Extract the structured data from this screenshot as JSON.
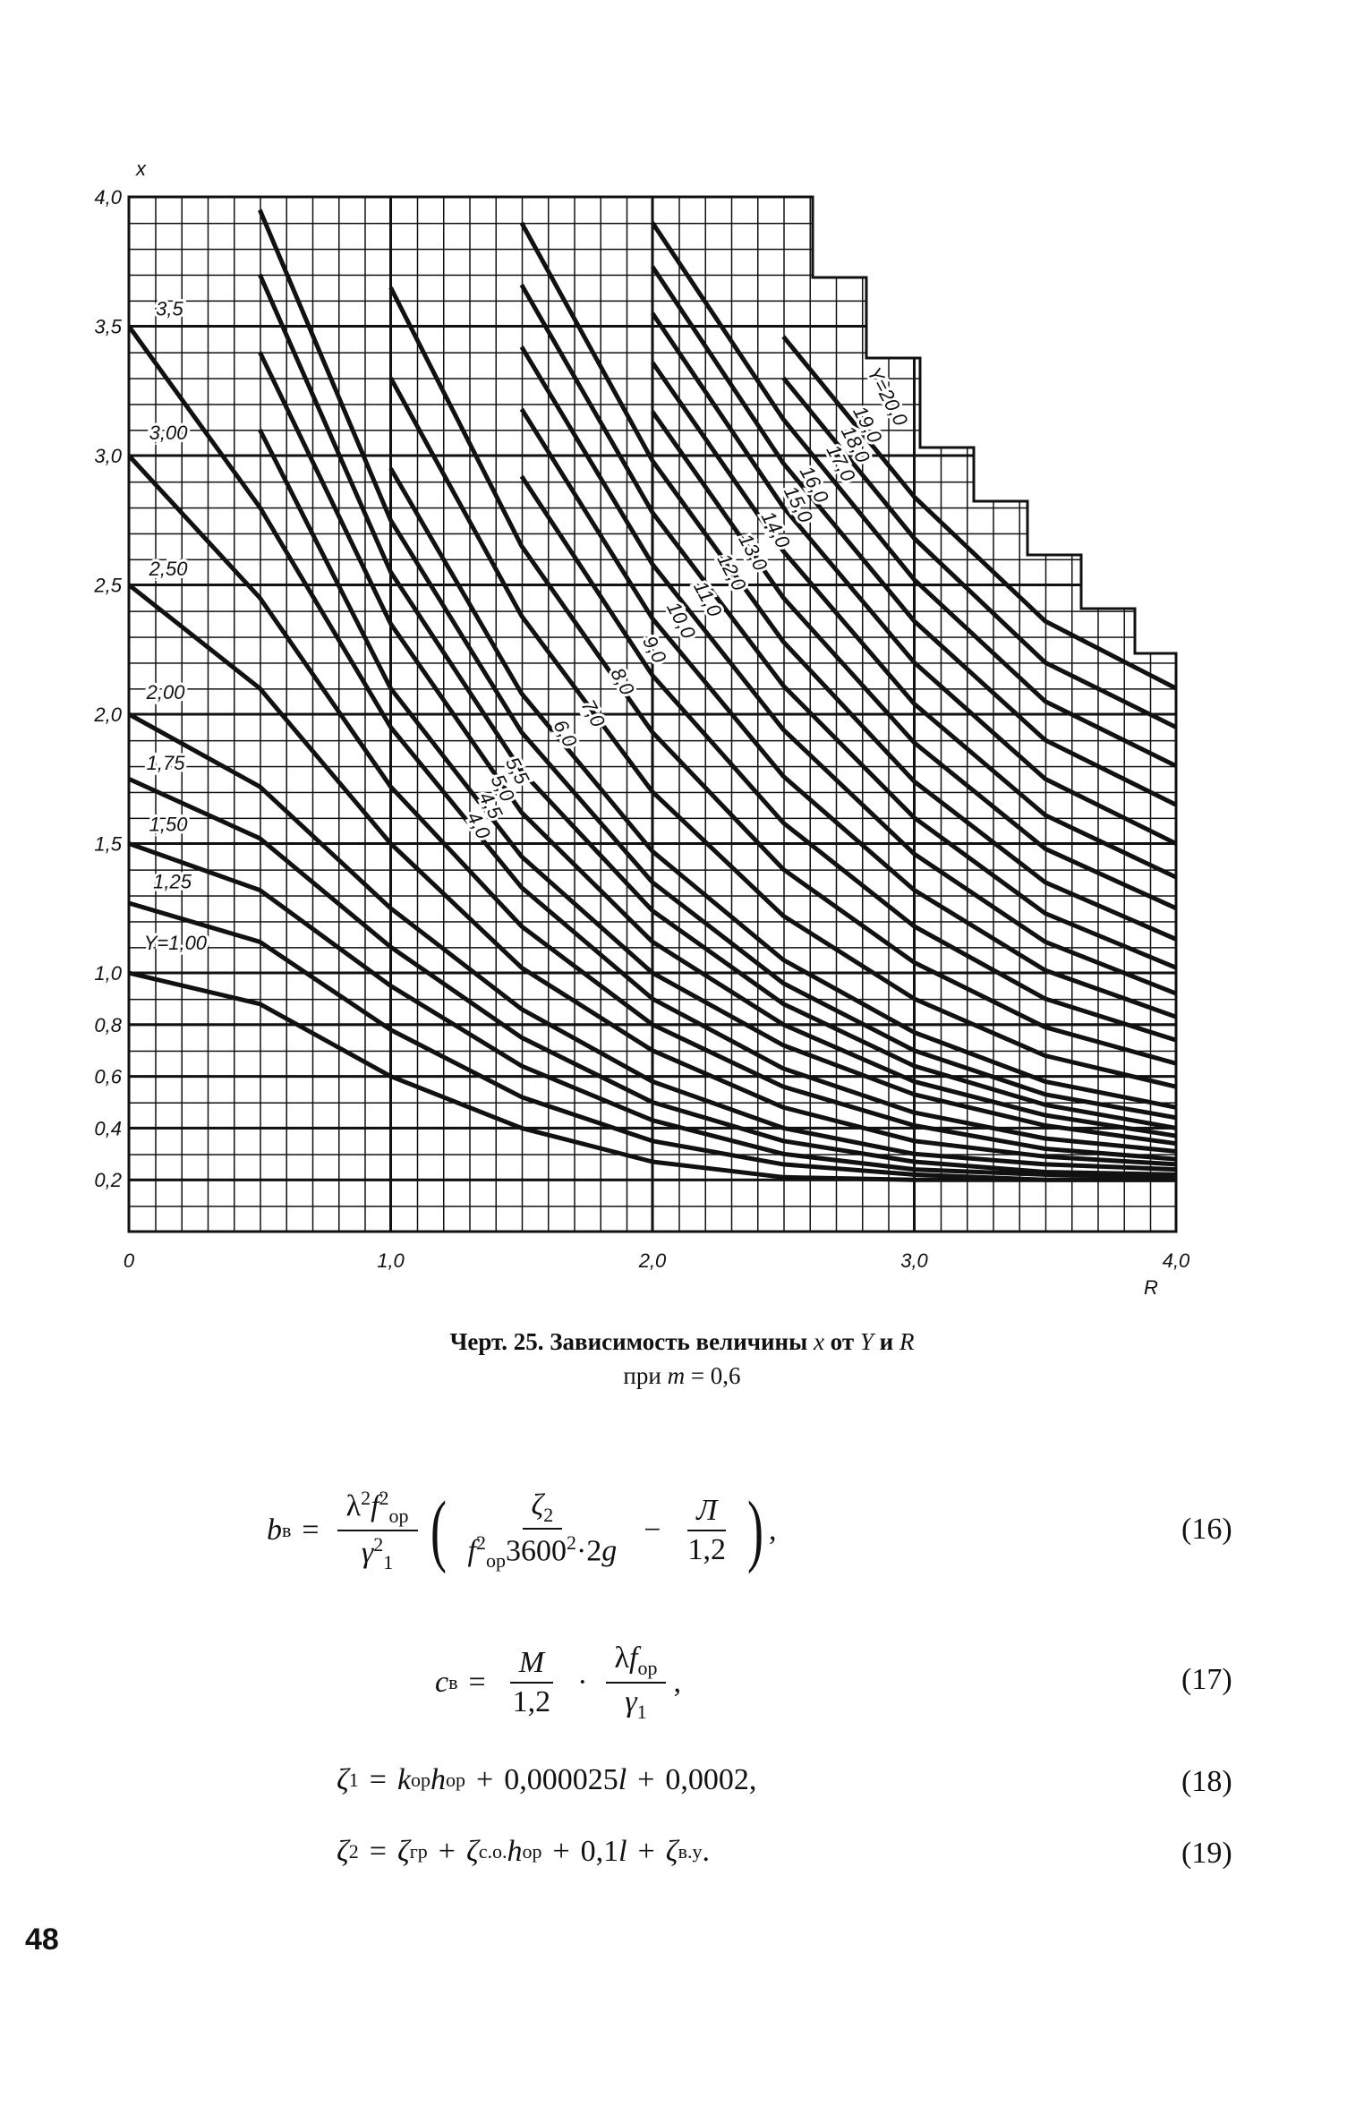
{
  "chart_data": {
    "type": "line",
    "x_label": "R",
    "y_label": "x",
    "x": [
      0,
      0.5,
      1,
      1.5,
      2,
      2.5,
      3,
      3.5,
      4
    ],
    "xlim": [
      0,
      4
    ],
    "ylim": [
      0,
      4
    ],
    "xticks": [
      0,
      {
        "value": 1,
        "label": "1,0"
      },
      {
        "value": 2,
        "label": "2,0"
      },
      {
        "value": 3,
        "label": "3,0"
      },
      {
        "value": 4,
        "label": "4,0"
      }
    ],
    "yticks": [
      {
        "value": 4,
        "label": "4,0"
      },
      {
        "value": 3.5,
        "label": "3,5"
      },
      {
        "value": 3,
        "label": "3,0"
      },
      {
        "value": 2.5,
        "label": "2,5"
      },
      {
        "value": 2,
        "label": "2,0"
      },
      {
        "value": 1.5,
        "label": "1,5"
      },
      {
        "value": 1,
        "label": "1,0"
      },
      {
        "value": 0.8,
        "label": "0,8"
      },
      {
        "value": 0.6,
        "label": "0,6"
      },
      {
        "value": 0.4,
        "label": "0,4"
      },
      {
        "value": 0.2,
        "label": "0,2"
      }
    ],
    "grid": true,
    "color": "#111111",
    "series": [
      {
        "name": "Y=1,00",
        "values": [
          1.0,
          0.88,
          0.6,
          0.4,
          0.27,
          0.21,
          0.2,
          0.2,
          0.2
        ]
      },
      {
        "name": "1,25",
        "values": [
          1.27,
          1.12,
          0.78,
          0.52,
          0.35,
          0.26,
          0.22,
          0.2,
          0.2
        ]
      },
      {
        "name": "1,50",
        "values": [
          1.5,
          1.32,
          0.95,
          0.64,
          0.43,
          0.3,
          0.24,
          0.22,
          0.21
        ]
      },
      {
        "name": "1,75",
        "values": [
          1.75,
          1.52,
          1.1,
          0.75,
          0.5,
          0.35,
          0.27,
          0.23,
          0.22
        ]
      },
      {
        "name": "2,00",
        "values": [
          2.0,
          1.72,
          1.25,
          0.86,
          0.58,
          0.4,
          0.3,
          0.26,
          0.24
        ]
      },
      {
        "name": "2,50",
        "values": [
          2.5,
          2.1,
          1.5,
          1.02,
          0.7,
          0.48,
          0.35,
          0.29,
          0.26
        ]
      },
      {
        "name": "3,00",
        "values": [
          3.0,
          2.45,
          1.72,
          1.18,
          0.8,
          0.56,
          0.41,
          0.32,
          0.28
        ]
      },
      {
        "name": "3,5",
        "values": [
          3.5,
          2.8,
          1.95,
          1.33,
          0.9,
          0.63,
          0.46,
          0.36,
          0.31
        ]
      },
      {
        "name": "4,0",
        "values": [
          null,
          3.1,
          2.1,
          1.45,
          1.0,
          0.72,
          0.53,
          0.41,
          0.34
        ]
      },
      {
        "name": "4,5",
        "values": [
          null,
          3.4,
          2.35,
          1.62,
          1.12,
          0.8,
          0.58,
          0.45,
          0.37
        ]
      },
      {
        "name": "5,0",
        "values": [
          null,
          3.7,
          2.55,
          1.78,
          1.24,
          0.88,
          0.64,
          0.49,
          0.4
        ]
      },
      {
        "name": "5,5",
        "values": [
          null,
          3.95,
          2.75,
          1.93,
          1.35,
          0.96,
          0.7,
          0.53,
          0.44
        ]
      },
      {
        "name": "6,0",
        "values": [
          null,
          null,
          2.95,
          2.08,
          1.47,
          1.05,
          0.77,
          0.58,
          0.48
        ]
      },
      {
        "name": "7,0",
        "values": [
          null,
          null,
          3.3,
          2.38,
          1.7,
          1.22,
          0.9,
          0.68,
          0.56
        ]
      },
      {
        "name": "8,0",
        "values": [
          null,
          null,
          3.65,
          2.65,
          1.93,
          1.4,
          1.04,
          0.79,
          0.65
        ]
      },
      {
        "name": "9,0",
        "values": [
          null,
          null,
          null,
          2.92,
          2.15,
          1.58,
          1.18,
          0.9,
          0.74
        ]
      },
      {
        "name": "10,0",
        "values": [
          null,
          null,
          null,
          3.18,
          2.37,
          1.76,
          1.32,
          1.01,
          0.83
        ]
      },
      {
        "name": "11,0",
        "values": [
          null,
          null,
          null,
          3.42,
          2.58,
          1.94,
          1.46,
          1.12,
          0.92
        ]
      },
      {
        "name": "12,0",
        "values": [
          null,
          null,
          null,
          3.66,
          2.78,
          2.11,
          1.6,
          1.23,
          1.02
        ]
      },
      {
        "name": "13,0",
        "values": [
          null,
          null,
          null,
          3.9,
          2.98,
          2.28,
          1.74,
          1.35,
          1.13
        ]
      },
      {
        "name": "14,0",
        "values": [
          null,
          null,
          null,
          null,
          3.17,
          2.45,
          1.89,
          1.48,
          1.25
        ]
      },
      {
        "name": "15,0",
        "values": [
          null,
          null,
          null,
          null,
          3.36,
          2.63,
          2.04,
          1.61,
          1.37
        ]
      },
      {
        "name": "16,0",
        "values": [
          null,
          null,
          null,
          null,
          3.55,
          2.8,
          2.2,
          1.75,
          1.5
        ]
      },
      {
        "name": "17,0",
        "values": [
          null,
          null,
          null,
          null,
          3.73,
          2.97,
          2.36,
          1.9,
          1.65
        ]
      },
      {
        "name": "18,0",
        "values": [
          null,
          null,
          null,
          null,
          3.9,
          3.14,
          2.52,
          2.05,
          1.8
        ]
      },
      {
        "name": "19,0",
        "values": [
          null,
          null,
          null,
          null,
          null,
          3.3,
          2.68,
          2.2,
          1.95
        ]
      },
      {
        "name": "Y=20,0",
        "values": [
          null,
          null,
          null,
          null,
          null,
          3.46,
          2.84,
          2.36,
          2.1
        ]
      }
    ]
  },
  "caption": {
    "line1": [
      "Черт. 25. Зависимость величины",
      "x",
      "от",
      "Y",
      "и",
      "R"
    ],
    "line2": [
      "при",
      "m",
      "= 0,6"
    ]
  },
  "formulas": [
    {
      "parts": [
        "b",
        "в",
        "=",
        "λ",
        "2",
        "f",
        "2",
        "ор",
        "γ",
        "2",
        "1",
        "(",
        "ζ",
        "2",
        "f",
        "2",
        "ор",
        "3600",
        "2",
        "·2",
        "g",
        "−",
        "Л",
        "1,2",
        ")",
        ","
      ],
      "number": "(16)"
    },
    {
      "parts": [
        "c",
        "в",
        "=",
        "M",
        "1,2",
        "·",
        "λ",
        "f",
        "ор",
        "γ",
        "1",
        ","
      ],
      "number": "(17)"
    },
    {
      "parts": [
        "ζ",
        "1",
        "=",
        "k",
        "ор",
        "h",
        "ор",
        "+",
        "0,000025",
        "l",
        "+",
        "0,0002,"
      ],
      "number": "(18)"
    },
    {
      "parts": [
        "ζ",
        "2",
        "=",
        "ζ",
        "гр",
        "+",
        "ζ",
        "с.о.",
        "h",
        "ор",
        "+",
        "0,1",
        "l",
        "+",
        "ζ",
        "в.у",
        "."
      ],
      "number": "(19)"
    }
  ],
  "page_number": "48"
}
